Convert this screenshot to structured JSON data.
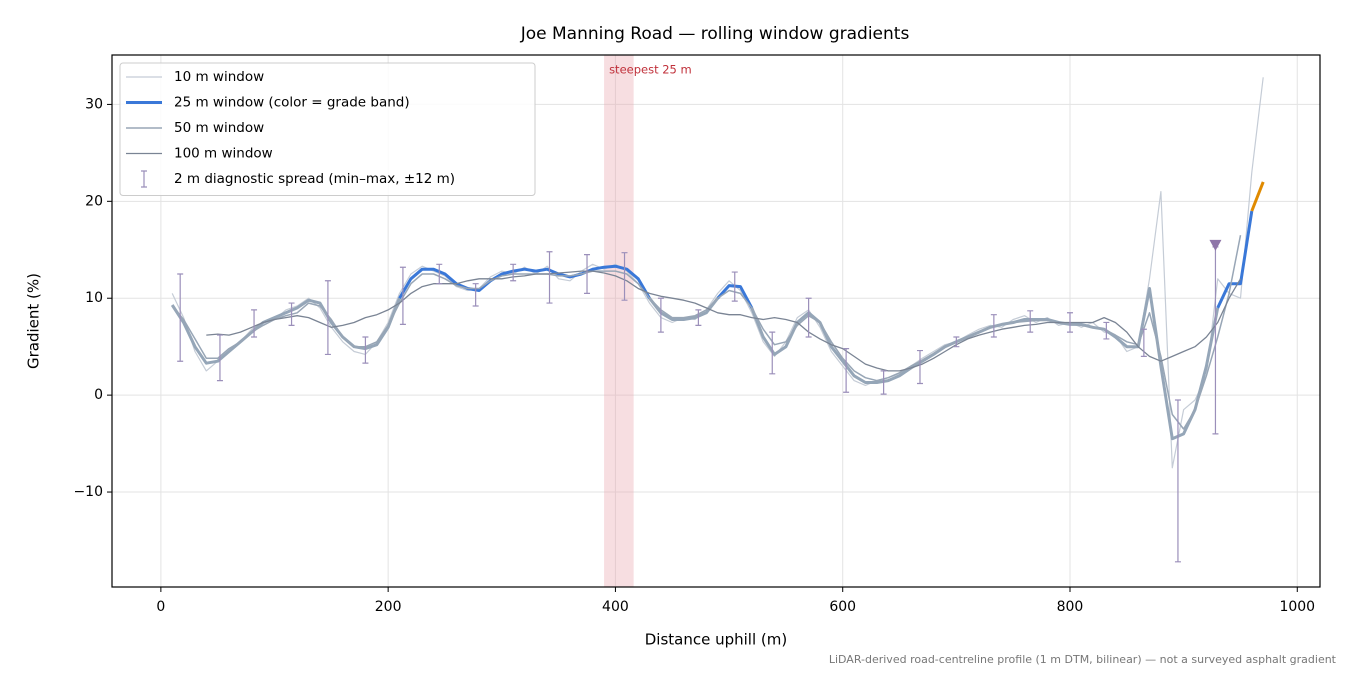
{
  "chart_data": {
    "type": "line",
    "title": "Joe Manning Road — rolling window gradients",
    "x_label": "Distance uphill (m)",
    "y_label": "Gradient (%)",
    "footnote": "LiDAR-derived road-centreline profile (1 m DTM, bilinear) — not a surveyed asphalt gradient",
    "xlim": [
      -43,
      1020
    ],
    "ylim": [
      -19.8,
      35.1
    ],
    "xticks": [
      0,
      200,
      400,
      600,
      800,
      1000
    ],
    "yticks": [
      {
        "value": -10,
        "label": "−10"
      },
      0,
      10,
      20,
      30
    ],
    "grid": true,
    "legend": "upper left",
    "x": [
      0,
      10,
      20,
      30,
      40,
      50,
      60,
      70,
      80,
      90,
      100,
      110,
      120,
      130,
      140,
      150,
      160,
      170,
      180,
      190,
      200,
      210,
      220,
      230,
      240,
      250,
      260,
      270,
      280,
      290,
      300,
      310,
      320,
      330,
      340,
      350,
      360,
      370,
      380,
      390,
      400,
      410,
      420,
      430,
      440,
      450,
      460,
      470,
      480,
      490,
      500,
      510,
      520,
      530,
      540,
      550,
      560,
      570,
      580,
      590,
      600,
      610,
      620,
      630,
      640,
      650,
      660,
      670,
      680,
      690,
      700,
      710,
      720,
      730,
      740,
      750,
      760,
      770,
      780,
      790,
      800,
      810,
      820,
      830,
      840,
      850,
      860,
      870,
      880,
      890,
      900,
      910,
      920,
      930,
      940,
      950,
      960,
      970
    ],
    "series": [
      {
        "name": "10 m window",
        "color": "#c5ccd6",
        "width": 1.2,
        "values": [
          null,
          10.5,
          8,
          4.5,
          2.5,
          3.5,
          4.5,
          5.5,
          6.8,
          7.5,
          7.8,
          8.8,
          9.2,
          10,
          9,
          7,
          5.5,
          4.5,
          4.2,
          5.5,
          7.5,
          10.5,
          12.5,
          13.3,
          12.8,
          12.3,
          11.2,
          10.8,
          11,
          12.2,
          12.8,
          12.5,
          13.2,
          12.5,
          13.3,
          12,
          11.8,
          12.8,
          13.5,
          13,
          13.5,
          12.8,
          11.5,
          9.5,
          8,
          7.5,
          8,
          7.8,
          8.8,
          10.5,
          11.8,
          10.8,
          8.5,
          5.5,
          4,
          5.5,
          8,
          8.8,
          7,
          4.5,
          3,
          1.5,
          1,
          1.5,
          1.8,
          2.2,
          3,
          3.8,
          4.5,
          5.2,
          5.5,
          6.2,
          6.8,
          7.2,
          7,
          7.8,
          8.2,
          7.5,
          8,
          7.2,
          7.5,
          7,
          7.5,
          6.5,
          6.2,
          4.5,
          5,
          12,
          21,
          -7.5,
          -1.5,
          -0.5,
          2,
          12,
          10.5,
          10,
          23,
          32.8
        ]
      },
      {
        "name": "25 m window (color = grade band)",
        "color": "#3a78d8",
        "width": 3,
        "grade_band_colors": [
          {
            "below": 10,
            "color": "#95a6b8"
          },
          {
            "below": 20,
            "color": "#3a78d8"
          },
          {
            "below": null,
            "color": "#e08a00"
          }
        ],
        "values": [
          null,
          9.3,
          7.5,
          5,
          3.3,
          3.5,
          4.5,
          5.5,
          6.5,
          7.5,
          8,
          8.5,
          9,
          9.8,
          9.5,
          7.5,
          6,
          5,
          4.8,
          5.2,
          7,
          10,
          12,
          13,
          13,
          12.5,
          11.5,
          11,
          10.8,
          11.8,
          12.5,
          12.8,
          13,
          12.8,
          13,
          12.5,
          12.2,
          12.5,
          13,
          13.2,
          13.3,
          13,
          12,
          10,
          8.5,
          7.8,
          7.8,
          8,
          8.5,
          10,
          11.3,
          11.2,
          9,
          6,
          4.2,
          5,
          7.5,
          8.5,
          7.5,
          5,
          3.5,
          2,
          1.3,
          1.3,
          1.5,
          2,
          2.8,
          3.5,
          4.2,
          5,
          5.5,
          6,
          6.5,
          7,
          7.3,
          7.5,
          7.8,
          7.8,
          7.8,
          7.5,
          7.3,
          7.3,
          7,
          6.8,
          6,
          5,
          5,
          11,
          3,
          -4.5,
          -4,
          -1.5,
          3,
          9,
          11.5,
          11.5,
          19,
          22
        ]
      },
      {
        "name": "50 m window",
        "color": "#98a6b6",
        "width": 1.5,
        "values": [
          null,
          9.2,
          7.8,
          5.8,
          3.8,
          3.8,
          4.8,
          5.5,
          6.5,
          7.2,
          7.8,
          8.2,
          8.5,
          9.5,
          9.2,
          7.8,
          6,
          5,
          5,
          5.5,
          7.2,
          9.5,
          11.5,
          12.5,
          12.5,
          12,
          11.3,
          11,
          11,
          11.8,
          12.3,
          12.5,
          12.5,
          12.5,
          12.5,
          12.3,
          12.3,
          12.5,
          12.8,
          12.8,
          12.8,
          12.5,
          11.5,
          10,
          8.8,
          8,
          8,
          8.2,
          8.8,
          10,
          10.8,
          10.5,
          9,
          6.8,
          5.2,
          5.5,
          7.2,
          8.2,
          7.5,
          5.5,
          3.8,
          2.5,
          1.8,
          1.5,
          1.8,
          2.3,
          3,
          3.6,
          4.3,
          5,
          5.5,
          6,
          6.5,
          7,
          7.3,
          7.5,
          7.6,
          7.7,
          7.7,
          7.5,
          7.3,
          7.2,
          7,
          6.8,
          6.2,
          5.5,
          5.2,
          8.5,
          4,
          -2,
          -3.5,
          -1.5,
          2,
          6,
          10.5,
          16.5,
          null,
          null
        ]
      },
      {
        "name": "100 m window",
        "color": "#7a8494",
        "width": 1.3,
        "values": [
          null,
          null,
          null,
          null,
          6.2,
          6.3,
          6.2,
          6.5,
          7,
          7.5,
          7.8,
          8,
          8.2,
          8,
          7.5,
          7,
          7.2,
          7.5,
          8,
          8.3,
          8.8,
          9.5,
          10.5,
          11.2,
          11.5,
          11.5,
          11.5,
          11.8,
          12,
          12,
          12,
          12.2,
          12.3,
          12.5,
          12.5,
          12.6,
          12.7,
          12.8,
          12.8,
          12.6,
          12.3,
          11.8,
          11,
          10.5,
          10.2,
          10,
          9.8,
          9.5,
          9,
          8.5,
          8.3,
          8.3,
          8,
          7.8,
          8,
          7.8,
          7.5,
          6.5,
          5.8,
          5.2,
          4.8,
          4,
          3.2,
          2.8,
          2.5,
          2.5,
          2.8,
          3.2,
          3.8,
          4.5,
          5.2,
          5.8,
          6.2,
          6.5,
          6.8,
          7,
          7.2,
          7.3,
          7.5,
          7.5,
          7.5,
          7.5,
          7.5,
          8,
          7.5,
          6.5,
          5,
          4,
          3.5,
          4,
          4.5,
          5,
          6,
          7.5,
          10,
          12,
          null,
          null
        ]
      }
    ],
    "errorbars": {
      "name": "2 m diagnostic spread (min–max, ±12 m)",
      "color": "#9b8fba",
      "x": [
        17,
        52,
        82,
        115,
        147,
        180,
        213,
        245,
        277,
        310,
        342,
        375,
        408,
        440,
        473,
        505,
        538,
        570,
        603,
        636,
        668,
        700,
        733,
        765,
        800,
        832,
        865,
        895,
        928
      ],
      "low": [
        3.5,
        1.5,
        6,
        7.2,
        4.2,
        3.3,
        7.3,
        11.5,
        9.2,
        11.8,
        9.5,
        10.5,
        9.8,
        6.5,
        7.2,
        9.7,
        2.2,
        6,
        0.3,
        0.1,
        1.2,
        5,
        6,
        6.5,
        6.5,
        5.8,
        4,
        -17.2,
        -4
      ],
      "high": [
        12.5,
        6.2,
        8.8,
        9.5,
        11.8,
        6,
        13.2,
        13.5,
        11.5,
        13.5,
        14.8,
        14.5,
        14.7,
        10,
        8.8,
        12.7,
        6.5,
        10,
        4.8,
        2.5,
        4.6,
        6,
        8.3,
        8.7,
        8.5,
        7.5,
        6.8,
        -0.5,
        15.3
      ]
    },
    "highlight": {
      "x": [
        390,
        416
      ],
      "label": "steepest 25 m",
      "color": "#e8a0a8",
      "label_color": "#c0303a"
    },
    "marker": {
      "x": 928,
      "y": 15.5,
      "color": "#8e75a8"
    }
  }
}
